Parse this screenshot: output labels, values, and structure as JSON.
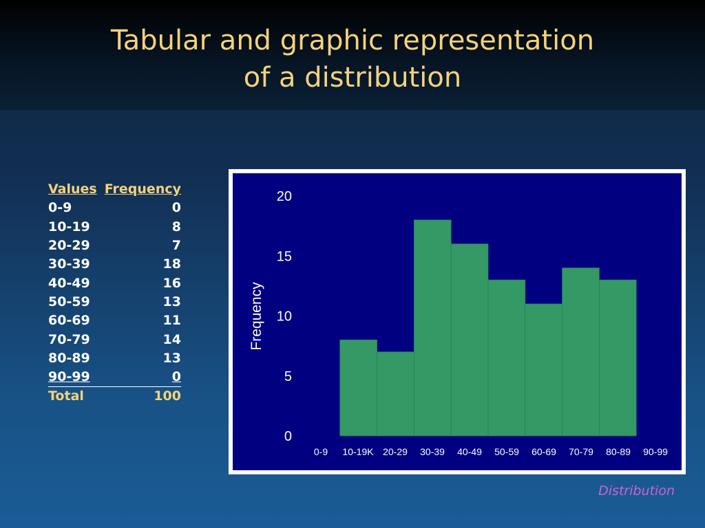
{
  "title_lines": [
    "Tabular and graphic representation",
    "of a distribution"
  ],
  "table": {
    "headers": [
      "Values",
      "Frequency"
    ],
    "rows": [
      {
        "values": "0-9",
        "frequency": "0"
      },
      {
        "values": "10-19",
        "frequency": "8"
      },
      {
        "values": "20-29",
        "frequency": "7"
      },
      {
        "values": "30-39",
        "frequency": "18"
      },
      {
        "values": "40-49",
        "frequency": "16"
      },
      {
        "values": "50-59",
        "frequency": "13"
      },
      {
        "values": "60-69",
        "frequency": "11"
      },
      {
        "values": "70-79",
        "frequency": "14"
      },
      {
        "values": "80-89",
        "frequency": "13"
      },
      {
        "values": "90-99",
        "frequency": "0"
      }
    ],
    "total": {
      "label": "Total",
      "value": "100"
    }
  },
  "chart_data": {
    "type": "bar",
    "categories": [
      "0-9",
      "10-19K",
      "20-29",
      "30-39",
      "40-49",
      "50-59",
      "60-69",
      "70-79",
      "80-89",
      "90-99"
    ],
    "values": [
      0,
      8,
      7,
      18,
      16,
      13,
      11,
      14,
      13,
      0
    ],
    "title": "",
    "xlabel": "",
    "ylabel": "Frequency",
    "ylim": [
      0,
      20
    ],
    "yticks": [
      0,
      5,
      10,
      15,
      20
    ],
    "grid": false,
    "bar_color": "#349965",
    "plot_background": "#000080"
  },
  "caption": "Distribution",
  "colors": {
    "title": "#f5d27a",
    "accent_text": "#f5d27a",
    "caption": "#d15fd8"
  }
}
